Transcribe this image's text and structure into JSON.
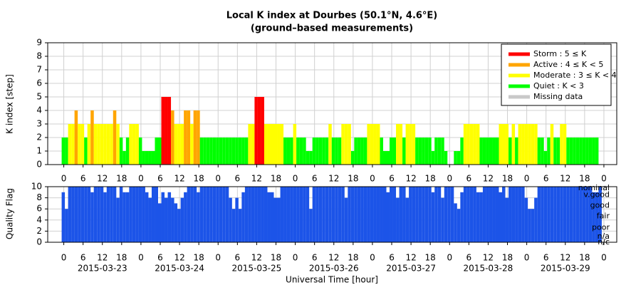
{
  "chart_data": [
    {
      "type": "bar",
      "title": "Local K index at Dourbes (50.1°N, 4.6°E)",
      "subtitle": "(ground–based measurements)",
      "y_label": "K index [step]",
      "x": [
        0,
        1,
        2,
        3,
        4,
        5,
        6,
        7,
        8,
        9,
        10,
        11,
        12,
        13,
        14,
        15,
        16,
        17,
        18,
        19,
        20,
        21,
        22,
        23,
        24,
        25,
        26,
        27,
        28,
        29,
        30,
        31,
        32,
        33,
        34,
        35,
        36,
        37,
        38,
        39,
        40,
        41,
        42,
        43,
        44,
        45,
        46,
        47,
        48,
        49,
        50,
        51,
        52,
        53,
        54,
        55,
        56,
        57,
        58,
        59,
        60,
        61,
        62,
        63,
        64,
        65,
        66,
        67,
        68,
        69,
        70,
        71,
        72,
        73,
        74,
        75,
        76,
        77,
        78,
        79,
        80,
        81,
        82,
        83,
        84,
        85,
        86,
        87,
        88,
        89,
        90,
        91,
        92,
        93,
        94,
        95,
        96,
        97,
        98,
        99,
        100,
        101,
        102,
        103,
        104,
        105,
        106,
        107,
        108,
        109,
        110,
        111,
        112,
        113,
        114,
        115,
        116,
        117,
        118,
        119,
        120,
        121,
        122,
        123,
        124,
        125,
        126,
        127,
        128,
        129,
        130,
        131,
        132,
        133,
        134,
        135,
        136,
        137,
        138,
        139,
        140,
        141,
        142,
        143,
        144,
        145,
        146,
        147,
        148,
        149,
        150,
        151,
        152,
        153,
        154,
        155,
        156,
        157,
        158,
        159,
        160,
        161,
        162,
        163,
        164,
        165,
        166,
        167
      ],
      "values": [
        2,
        2,
        3,
        3,
        4,
        3,
        3,
        2,
        3,
        4,
        3,
        3,
        3,
        3,
        3,
        3,
        4,
        3,
        2,
        1,
        2,
        3,
        3,
        3,
        2,
        1,
        1,
        1,
        1,
        2,
        2,
        5,
        5,
        5,
        4,
        3,
        3,
        3,
        4,
        4,
        3,
        4,
        4,
        2,
        2,
        2,
        2,
        2,
        2,
        2,
        2,
        2,
        2,
        2,
        2,
        2,
        2,
        2,
        3,
        3,
        5,
        5,
        5,
        3,
        3,
        3,
        3,
        3,
        3,
        2,
        2,
        2,
        3,
        2,
        2,
        2,
        1,
        1,
        2,
        2,
        2,
        2,
        2,
        3,
        2,
        2,
        2,
        3,
        3,
        3,
        1,
        2,
        2,
        2,
        2,
        3,
        3,
        3,
        3,
        2,
        1,
        1,
        2,
        2,
        3,
        3,
        2,
        3,
        3,
        3,
        2,
        2,
        2,
        2,
        2,
        1,
        2,
        2,
        2,
        1,
        0,
        0,
        1,
        1,
        2,
        3,
        3,
        3,
        3,
        3,
        2,
        2,
        2,
        2,
        2,
        2,
        3,
        3,
        3,
        2,
        3,
        2,
        3,
        3,
        3,
        3,
        3,
        3,
        2,
        2,
        1,
        2,
        3,
        2,
        2,
        3,
        3,
        2,
        2,
        2,
        2,
        2,
        2,
        2,
        2,
        2,
        2,
        null
      ],
      "xlim": [
        -5,
        172
      ],
      "ylim": [
        0,
        9
      ],
      "yticks": [
        0,
        1,
        2,
        3,
        4,
        5,
        6,
        7,
        8,
        9
      ],
      "xticks": [
        0,
        6,
        12,
        18,
        {
          "value": 24,
          "label": "0"
        },
        {
          "value": 30,
          "label": "6"
        },
        {
          "value": 36,
          "label": "12"
        },
        {
          "value": 42,
          "label": "18"
        },
        {
          "value": 48,
          "label": "0"
        },
        {
          "value": 54,
          "label": "6"
        },
        {
          "value": 60,
          "label": "12"
        },
        {
          "value": 66,
          "label": "18"
        },
        {
          "value": 72,
          "label": "0"
        },
        {
          "value": 78,
          "label": "6"
        },
        {
          "value": 84,
          "label": "12"
        },
        {
          "value": 90,
          "label": "18"
        },
        {
          "value": 96,
          "label": "0"
        },
        {
          "value": 102,
          "label": "6"
        },
        {
          "value": 108,
          "label": "12"
        },
        {
          "value": 114,
          "label": "18"
        },
        {
          "value": 120,
          "label": "0"
        },
        {
          "value": 126,
          "label": "6"
        },
        {
          "value": 132,
          "label": "12"
        },
        {
          "value": 138,
          "label": "18"
        },
        {
          "value": 144,
          "label": "0"
        },
        {
          "value": 150,
          "label": "6"
        },
        {
          "value": 156,
          "label": "12"
        },
        {
          "value": 162,
          "label": "18"
        },
        {
          "value": 168,
          "label": "0"
        }
      ],
      "grid": true,
      "legend_position": "upper right",
      "legend": [
        {
          "name": "Storm : 5 ≤ K",
          "color": "#ff0000",
          "min": 5
        },
        {
          "name": "Active : 4 ≤ K < 5",
          "color": "#ffa500",
          "min": 4
        },
        {
          "name": "Moderate : 3 ≤ K < 4",
          "color": "#ffff00",
          "min": 3
        },
        {
          "name": "Quiet : K < 3",
          "color": "#00ff00",
          "min": 0
        },
        {
          "name": "Missing data",
          "color": "#c8c8c8"
        }
      ]
    },
    {
      "type": "bar",
      "y_label": "Quality Flag",
      "x_label": "Universal Time [hour]",
      "color": "#1c54e8",
      "x": [
        0,
        1,
        2,
        3,
        4,
        5,
        6,
        7,
        8,
        9,
        10,
        11,
        12,
        13,
        14,
        15,
        16,
        17,
        18,
        19,
        20,
        21,
        22,
        23,
        24,
        25,
        26,
        27,
        28,
        29,
        30,
        31,
        32,
        33,
        34,
        35,
        36,
        37,
        38,
        39,
        40,
        41,
        42,
        43,
        44,
        45,
        46,
        47,
        48,
        49,
        50,
        51,
        52,
        53,
        54,
        55,
        56,
        57,
        58,
        59,
        60,
        61,
        62,
        63,
        64,
        65,
        66,
        67,
        68,
        69,
        70,
        71,
        72,
        73,
        74,
        75,
        76,
        77,
        78,
        79,
        80,
        81,
        82,
        83,
        84,
        85,
        86,
        87,
        88,
        89,
        90,
        91,
        92,
        93,
        94,
        95,
        96,
        97,
        98,
        99,
        100,
        101,
        102,
        103,
        104,
        105,
        106,
        107,
        108,
        109,
        110,
        111,
        112,
        113,
        114,
        115,
        116,
        117,
        118,
        119,
        120,
        121,
        122,
        123,
        124,
        125,
        126,
        127,
        128,
        129,
        130,
        131,
        132,
        133,
        134,
        135,
        136,
        137,
        138,
        139,
        140,
        141,
        142,
        143,
        144,
        145,
        146,
        147,
        148,
        149,
        150,
        151,
        152,
        153,
        154,
        155,
        156,
        157,
        158,
        159,
        160,
        161,
        162,
        163,
        164,
        165,
        166,
        167
      ],
      "values": [
        9,
        6,
        10,
        10,
        10,
        10,
        10,
        10,
        10,
        9,
        10,
        10,
        10,
        9,
        10,
        10,
        10,
        8,
        10,
        9,
        9,
        10,
        10,
        10,
        10,
        10,
        9,
        8,
        10,
        10,
        7,
        9,
        8,
        9,
        8,
        7,
        6,
        8,
        9,
        10,
        10,
        10,
        9,
        10,
        10,
        10,
        10,
        10,
        10,
        10,
        10,
        10,
        8,
        6,
        8,
        6,
        9,
        10,
        10,
        10,
        10,
        10,
        10,
        10,
        9,
        9,
        8,
        8,
        10,
        10,
        10,
        10,
        10,
        10,
        10,
        10,
        10,
        6,
        10,
        10,
        10,
        10,
        10,
        10,
        10,
        10,
        10,
        10,
        8,
        10,
        10,
        10,
        10,
        10,
        10,
        10,
        10,
        10,
        10,
        10,
        10,
        9,
        10,
        10,
        8,
        10,
        10,
        8,
        10,
        10,
        10,
        10,
        10,
        10,
        10,
        9,
        10,
        10,
        8,
        10,
        10,
        10,
        7,
        6,
        9,
        10,
        10,
        10,
        10,
        9,
        9,
        10,
        10,
        10,
        10,
        10,
        9,
        10,
        8,
        10,
        10,
        10,
        10,
        10,
        8,
        6,
        6,
        8,
        10,
        10,
        10,
        10,
        10,
        10,
        10,
        10,
        10,
        10,
        10,
        10,
        10,
        10,
        10,
        10,
        10,
        9,
        9,
        10
      ],
      "xlim": [
        -5,
        172
      ],
      "ylim": [
        0,
        10
      ],
      "yticks": [
        0,
        2,
        4,
        6,
        8,
        10
      ],
      "xticks": [
        0,
        6,
        12,
        18,
        {
          "value": 24,
          "label": "0"
        },
        {
          "value": 30,
          "label": "6"
        },
        {
          "value": 36,
          "label": "12"
        },
        {
          "value": 42,
          "label": "18"
        },
        {
          "value": 48,
          "label": "0"
        },
        {
          "value": 54,
          "label": "6"
        },
        {
          "value": 60,
          "label": "12"
        },
        {
          "value": 66,
          "label": "18"
        },
        {
          "value": 72,
          "label": "0"
        },
        {
          "value": 78,
          "label": "6"
        },
        {
          "value": 84,
          "label": "12"
        },
        {
          "value": 90,
          "label": "18"
        },
        {
          "value": 96,
          "label": "0"
        },
        {
          "value": 102,
          "label": "6"
        },
        {
          "value": 108,
          "label": "12"
        },
        {
          "value": 114,
          "label": "18"
        },
        {
          "value": 120,
          "label": "0"
        },
        {
          "value": 126,
          "label": "6"
        },
        {
          "value": 132,
          "label": "12"
        },
        {
          "value": 138,
          "label": "18"
        },
        {
          "value": 144,
          "label": "0"
        },
        {
          "value": 150,
          "label": "6"
        },
        {
          "value": 156,
          "label": "12"
        },
        {
          "value": 162,
          "label": "18"
        },
        {
          "value": 168,
          "label": "0"
        }
      ],
      "date_ticks": [
        {
          "value": 12,
          "label": "2015-03-23"
        },
        {
          "value": 36,
          "label": "2015-03-24"
        },
        {
          "value": 60,
          "label": "2015-03-25"
        },
        {
          "value": 84,
          "label": "2015-03-26"
        },
        {
          "value": 108,
          "label": "2015-03-27"
        },
        {
          "value": 132,
          "label": "2015-03-28"
        },
        {
          "value": 156,
          "label": "2015-03-29"
        }
      ],
      "quality_labels": [
        {
          "value": 10,
          "label": "nominal"
        },
        {
          "value": 8.5,
          "label": "v.good"
        },
        {
          "value": 6.6,
          "label": "good"
        },
        {
          "value": 4.7,
          "label": "fair"
        },
        {
          "value": 2.6,
          "label": "poor"
        },
        {
          "value": 1,
          "label": "n/a"
        },
        {
          "value": 0,
          "label": "n/c"
        }
      ],
      "grid": true
    }
  ]
}
